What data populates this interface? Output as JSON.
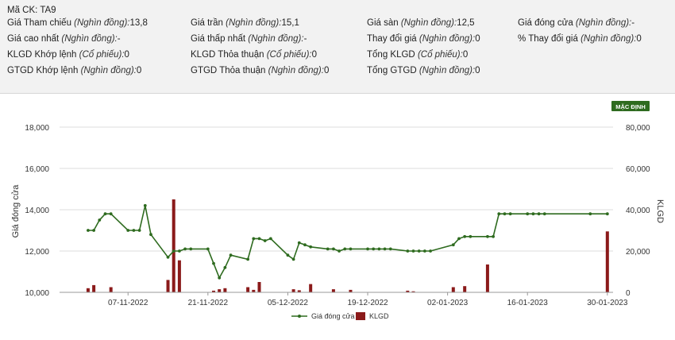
{
  "stock": {
    "code_label": "Mã CK:",
    "code": "TA9",
    "fields": [
      {
        "label": "Giá Tham chiếu",
        "unit": "(Nghìn đồng):",
        "value": "13,8"
      },
      {
        "label": "Giá trần",
        "unit": "(Nghìn đồng):",
        "value": "15,1"
      },
      {
        "label": "Giá sàn",
        "unit": "(Nghìn đồng):",
        "value": "12,5"
      },
      {
        "label": "Giá đóng cửa",
        "unit": "(Nghìn đồng):",
        "value": "-"
      },
      {
        "label": "Giá cao nhất",
        "unit": "(Nghìn đồng):",
        "value": "-"
      },
      {
        "label": "Giá thấp nhất",
        "unit": "(Nghìn đồng):",
        "value": "-"
      },
      {
        "label": "Thay đổi giá",
        "unit": "(Nghìn đồng):",
        "value": "0"
      },
      {
        "label": "% Thay đổi giá",
        "unit": "(Nghìn đồng):",
        "value": "0"
      },
      {
        "label": "KLGD Khớp lệnh",
        "unit": "(Cổ phiếu):",
        "value": "0"
      },
      {
        "label": "KLGD Thỏa thuận",
        "unit": "(Cổ phiếu):",
        "value": "0"
      },
      {
        "label": "Tổng KLGD",
        "unit": "(Cổ phiếu):",
        "value": "0"
      },
      {
        "label": "GTGD Khớp lệnh",
        "unit": "(Nghìn đồng):",
        "value": "0"
      },
      {
        "label": "GTGD Thỏa thuận",
        "unit": "(Nghìn đồng):",
        "value": "0"
      },
      {
        "label": "Tổng GTGD",
        "unit": "(Nghìn đồng):",
        "value": "0"
      }
    ]
  },
  "chart_data": {
    "type": "line",
    "default_button_label": "MẶC ĐỊNH",
    "ylabel": "Giá đóng cửa",
    "y2label": "KLGD",
    "ylim": [
      10000,
      18000
    ],
    "y2lim": [
      0,
      80000
    ],
    "yticks": [
      "10,000",
      "12,000",
      "14,000",
      "16,000",
      "18,000"
    ],
    "y2ticks": [
      "0",
      "20,000",
      "40,000",
      "60,000",
      "80,000"
    ],
    "xticks": [
      "07-11-2022",
      "21-11-2022",
      "05-12-2022",
      "19-12-2022",
      "02-01-2023",
      "16-01-2023",
      "30-01-2023"
    ],
    "grid": true,
    "legend_position": "bottom",
    "colors": {
      "line": "#2e6b1f",
      "bar": "#8b1a1a",
      "button": "#2e6b1f"
    },
    "series": [
      {
        "name": "Giá đóng cửa",
        "type": "line",
        "x": [
          "2022-10-31",
          "2022-11-01",
          "2022-11-02",
          "2022-11-03",
          "2022-11-04",
          "2022-11-07",
          "2022-11-08",
          "2022-11-09",
          "2022-11-10",
          "2022-11-11",
          "2022-11-14",
          "2022-11-15",
          "2022-11-16",
          "2022-11-17",
          "2022-11-18",
          "2022-11-21",
          "2022-11-22",
          "2022-11-23",
          "2022-11-24",
          "2022-11-25",
          "2022-11-28",
          "2022-11-29",
          "2022-11-30",
          "2022-12-01",
          "2022-12-02",
          "2022-12-05",
          "2022-12-06",
          "2022-12-07",
          "2022-12-08",
          "2022-12-09",
          "2022-12-12",
          "2022-12-13",
          "2022-12-14",
          "2022-12-15",
          "2022-12-16",
          "2022-12-19",
          "2022-12-20",
          "2022-12-21",
          "2022-12-22",
          "2022-12-23",
          "2022-12-26",
          "2022-12-27",
          "2022-12-28",
          "2022-12-29",
          "2022-12-30",
          "2023-01-03",
          "2023-01-04",
          "2023-01-05",
          "2023-01-06",
          "2023-01-09",
          "2023-01-10",
          "2023-01-11",
          "2023-01-12",
          "2023-01-13",
          "2023-01-16",
          "2023-01-17",
          "2023-01-18",
          "2023-01-19",
          "2023-01-27",
          "2023-01-30"
        ],
        "values": [
          13000,
          13000,
          13500,
          13800,
          13800,
          13000,
          13000,
          13000,
          14200,
          12800,
          11700,
          12000,
          12000,
          12100,
          12100,
          12100,
          11400,
          10700,
          11200,
          11800,
          11600,
          12600,
          12600,
          12500,
          12600,
          11800,
          11600,
          12400,
          12300,
          12200,
          12100,
          12100,
          12000,
          12100,
          12100,
          12100,
          12100,
          12100,
          12100,
          12100,
          12000,
          12000,
          12000,
          12000,
          12000,
          12300,
          12600,
          12700,
          12700,
          12700,
          12700,
          13800,
          13800,
          13800,
          13800,
          13800,
          13800,
          13800,
          13800,
          13800
        ]
      },
      {
        "name": "KLGD",
        "type": "bar",
        "x": [
          "2022-10-31",
          "2022-11-01",
          "2022-11-04",
          "2022-11-14",
          "2022-11-15",
          "2022-11-16",
          "2022-11-22",
          "2022-11-23",
          "2022-11-24",
          "2022-11-28",
          "2022-11-29",
          "2022-11-30",
          "2022-12-06",
          "2022-12-07",
          "2022-12-09",
          "2022-12-13",
          "2022-12-16",
          "2022-12-26",
          "2022-12-27",
          "2023-01-03",
          "2023-01-05",
          "2023-01-09",
          "2023-01-30"
        ],
        "values": [
          2000,
          3500,
          2500,
          6000,
          45000,
          15500,
          800,
          1500,
          2000,
          2500,
          1200,
          5000,
          1500,
          1000,
          4000,
          1500,
          1200,
          800,
          500,
          2500,
          3000,
          13500,
          29500
        ]
      }
    ]
  }
}
